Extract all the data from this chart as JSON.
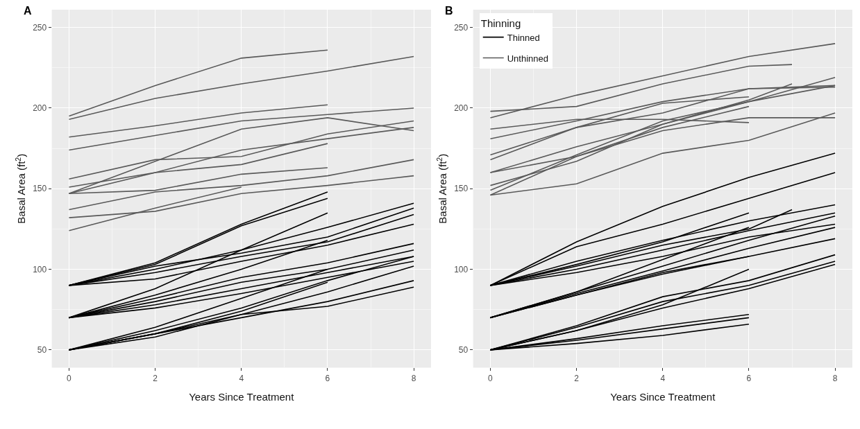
{
  "chart_data": [
    {
      "type": "line",
      "title": "A",
      "xlabel": "Years Since Treatment",
      "ylabel": "Basal Area (ft$^{2}$)",
      "xlim": [
        -0.4,
        8.4
      ],
      "xticks": [
        0,
        2,
        4,
        6,
        8
      ],
      "ylim": [
        39,
        261
      ],
      "yticks": [
        50,
        100,
        150,
        200,
        250
      ],
      "grid": true,
      "legend": false,
      "marker": "none",
      "line_style": "solid",
      "series": [
        {
          "color": "#595959",
          "x": [
            0,
            2,
            4,
            6
          ],
          "values": [
            195,
            214,
            231,
            236
          ]
        },
        {
          "color": "#595959",
          "x": [
            0,
            2,
            4,
            6,
            8
          ],
          "values": [
            193,
            206,
            215,
            223,
            232
          ]
        },
        {
          "color": "#595959",
          "x": [
            0,
            2,
            4,
            6
          ],
          "values": [
            182,
            189,
            197,
            202
          ]
        },
        {
          "color": "#595959",
          "x": [
            0,
            2,
            4,
            6,
            8
          ],
          "values": [
            174,
            183,
            192,
            196,
            200
          ]
        },
        {
          "color": "#595959",
          "x": [
            0,
            2,
            4,
            6,
            8
          ],
          "values": [
            147,
            167,
            187,
            194,
            186
          ]
        },
        {
          "color": "#595959",
          "x": [
            0,
            2,
            4,
            6,
            8
          ],
          "values": [
            156,
            168,
            170,
            184,
            192
          ]
        },
        {
          "color": "#595959",
          "x": [
            0,
            2,
            4,
            6,
            8
          ],
          "values": [
            151,
            160,
            174,
            181,
            188
          ]
        },
        {
          "color": "#595959",
          "x": [
            0,
            2,
            4,
            6
          ],
          "values": [
            147,
            160,
            165,
            178
          ]
        },
        {
          "color": "#595959",
          "x": [
            0,
            2,
            4,
            6
          ],
          "values": [
            147,
            149,
            159,
            163
          ]
        },
        {
          "color": "#595959",
          "x": [
            0,
            2,
            4,
            6,
            8
          ],
          "values": [
            137,
            148,
            152,
            158,
            168
          ]
        },
        {
          "color": "#595959",
          "x": [
            0,
            2,
            4,
            6,
            8
          ],
          "values": [
            132,
            136,
            147,
            152,
            158
          ]
        },
        {
          "color": "#595959",
          "x": [
            0,
            2,
            4
          ],
          "values": [
            124,
            138,
            151
          ]
        },
        {
          "color": "#000000",
          "x": [
            0,
            2,
            4,
            6
          ],
          "values": [
            90,
            104,
            128,
            148
          ]
        },
        {
          "color": "#000000",
          "x": [
            0,
            2,
            4,
            6
          ],
          "values": [
            90,
            103,
            127,
            144
          ]
        },
        {
          "color": "#000000",
          "x": [
            0,
            2,
            4,
            6,
            8
          ],
          "values": [
            90,
            100,
            112,
            126,
            141
          ]
        },
        {
          "color": "#000000",
          "x": [
            0,
            2,
            4,
            6,
            8
          ],
          "values": [
            90,
            102,
            110,
            120,
            138
          ]
        },
        {
          "color": "#000000",
          "x": [
            0,
            2,
            4,
            6,
            8
          ],
          "values": [
            90,
            98,
            108,
            117,
            134
          ]
        },
        {
          "color": "#000000",
          "x": [
            0,
            2,
            4,
            6,
            8
          ],
          "values": [
            90,
            94,
            105,
            115,
            128
          ]
        },
        {
          "color": "#000000",
          "x": [
            0,
            2,
            4,
            6
          ],
          "values": [
            70,
            88,
            112,
            135
          ]
        },
        {
          "color": "#000000",
          "x": [
            0,
            2,
            4,
            6,
            8
          ],
          "values": [
            70,
            82,
            95,
            104,
            116
          ]
        },
        {
          "color": "#000000",
          "x": [
            0,
            2,
            4,
            6,
            8
          ],
          "values": [
            70,
            80,
            92,
            100,
            112
          ]
        },
        {
          "color": "#000000",
          "x": [
            0,
            2,
            4,
            6,
            8
          ],
          "values": [
            70,
            78,
            88,
            98,
            108
          ]
        },
        {
          "color": "#000000",
          "x": [
            0,
            2,
            4,
            6,
            8
          ],
          "values": [
            70,
            76,
            85,
            95,
            105
          ]
        },
        {
          "color": "#000000",
          "x": [
            0,
            2,
            4,
            6
          ],
          "values": [
            70,
            84,
            100,
            118
          ]
        },
        {
          "color": "#000000",
          "x": [
            0,
            2,
            4,
            6,
            8
          ],
          "values": [
            50,
            62,
            76,
            93,
            108
          ]
        },
        {
          "color": "#000000",
          "x": [
            0,
            2,
            4,
            6,
            8
          ],
          "values": [
            50,
            60,
            72,
            86,
            102
          ]
        },
        {
          "color": "#000000",
          "x": [
            0,
            2,
            4,
            6,
            8
          ],
          "values": [
            50,
            60,
            70,
            80,
            93
          ]
        },
        {
          "color": "#000000",
          "x": [
            0,
            2,
            4,
            6,
            8
          ],
          "values": [
            50,
            58,
            72,
            77,
            89
          ]
        },
        {
          "color": "#000000",
          "x": [
            0,
            2,
            4,
            6
          ],
          "values": [
            50,
            64,
            82,
            100
          ]
        },
        {
          "color": "#000000",
          "x": [
            0,
            2,
            4,
            6
          ],
          "values": [
            50,
            60,
            74,
            92
          ]
        }
      ]
    },
    {
      "type": "line",
      "title": "B",
      "xlabel": "Years Since Treatment",
      "ylabel": "Basal Area (ft$^{2}$)",
      "legend_title": "Thinning",
      "xlim": [
        -0.4,
        8.4
      ],
      "xticks": [
        0,
        2,
        4,
        6,
        8
      ],
      "ylim": [
        39,
        261
      ],
      "yticks": [
        50,
        100,
        150,
        200,
        250
      ],
      "grid": true,
      "legend": "top left",
      "marker": "none",
      "line_style": "solid",
      "series": [
        {
          "name": "Thinned",
          "color": "#000000",
          "x": [
            0,
            2,
            4,
            6,
            8
          ],
          "values": [
            90,
            117,
            139,
            157,
            172
          ]
        },
        {
          "name": "Unthinned",
          "color": "#595959",
          "x": [
            0,
            2,
            4,
            6,
            8
          ],
          "values": [
            194,
            208,
            220,
            232,
            240
          ]
        },
        {
          "color": "#595959",
          "x": [
            0,
            2,
            4,
            6,
            7
          ],
          "values": [
            198,
            201,
            215,
            226,
            227
          ]
        },
        {
          "color": "#595959",
          "x": [
            0,
            2,
            4,
            6
          ],
          "values": [
            187,
            193,
            193,
            191
          ]
        },
        {
          "color": "#595959",
          "x": [
            0,
            2,
            4,
            6,
            8
          ],
          "values": [
            181,
            192,
            204,
            212,
            214
          ]
        },
        {
          "color": "#595959",
          "x": [
            0,
            2,
            4,
            6
          ],
          "values": [
            171,
            188,
            203,
            207
          ]
        },
        {
          "color": "#595959",
          "x": [
            0,
            2,
            4,
            6,
            8
          ],
          "values": [
            168,
            188,
            197,
            212,
            213
          ]
        },
        {
          "color": "#595959",
          "x": [
            0,
            2,
            4,
            6,
            8
          ],
          "values": [
            160,
            176,
            190,
            204,
            219
          ]
        },
        {
          "color": "#595959",
          "x": [
            0,
            2,
            4,
            6
          ],
          "values": [
            160,
            170,
            188,
            201
          ]
        },
        {
          "color": "#595959",
          "x": [
            0,
            2,
            4,
            6,
            7
          ],
          "values": [
            152,
            167,
            190,
            205,
            215
          ]
        },
        {
          "color": "#595959",
          "x": [
            0,
            2,
            4,
            6,
            8
          ],
          "values": [
            149,
            171,
            192,
            204,
            214
          ]
        },
        {
          "color": "#595959",
          "x": [
            0,
            2,
            4,
            6,
            8
          ],
          "values": [
            146,
            153,
            172,
            180,
            197
          ]
        },
        {
          "color": "#595959",
          "x": [
            0,
            2,
            4,
            6,
            8
          ],
          "values": [
            146,
            170,
            186,
            194,
            194
          ]
        },
        {
          "color": "#000000",
          "x": [
            0,
            2,
            4,
            6,
            8
          ],
          "values": [
            90,
            114,
            128,
            144,
            160
          ]
        },
        {
          "color": "#000000",
          "x": [
            0,
            2,
            4,
            6,
            8
          ],
          "values": [
            90,
            105,
            118,
            130,
            140
          ]
        },
        {
          "color": "#000000",
          "x": [
            0,
            2,
            4,
            6,
            7
          ],
          "values": [
            90,
            102,
            115,
            125,
            137
          ]
        },
        {
          "color": "#000000",
          "x": [
            0,
            2,
            4,
            6,
            8
          ],
          "values": [
            90,
            100,
            112,
            124,
            135
          ]
        },
        {
          "color": "#000000",
          "x": [
            0,
            2,
            4,
            6,
            8
          ],
          "values": [
            90,
            98,
            108,
            120,
            128
          ]
        },
        {
          "color": "#000000",
          "x": [
            0,
            2,
            4,
            6
          ],
          "values": [
            90,
            103,
            117,
            135
          ]
        },
        {
          "color": "#000000",
          "x": [
            0,
            2,
            4,
            6,
            8
          ],
          "values": [
            70,
            86,
            102,
            118,
            133
          ]
        },
        {
          "color": "#000000",
          "x": [
            0,
            2,
            4,
            6,
            8
          ],
          "values": [
            70,
            85,
            99,
            113,
            126
          ]
        },
        {
          "color": "#000000",
          "x": [
            0,
            2,
            4,
            6,
            8
          ],
          "values": [
            70,
            84,
            97,
            108,
            119
          ]
        },
        {
          "color": "#000000",
          "x": [
            0,
            2,
            4,
            6
          ],
          "values": [
            70,
            86,
            106,
            126
          ]
        },
        {
          "color": "#000000",
          "x": [
            0,
            2,
            4,
            6
          ],
          "values": [
            70,
            84,
            98,
            108
          ]
        },
        {
          "color": "#000000",
          "x": [
            0,
            2,
            4,
            6,
            8
          ],
          "values": [
            50,
            65,
            83,
            93,
            109
          ]
        },
        {
          "color": "#000000",
          "x": [
            0,
            2,
            4,
            6,
            8
          ],
          "values": [
            50,
            64,
            80,
            90,
            105
          ]
        },
        {
          "color": "#000000",
          "x": [
            0,
            2,
            4,
            6,
            8
          ],
          "values": [
            50,
            62,
            76,
            88,
            103
          ]
        },
        {
          "color": "#000000",
          "x": [
            0,
            2,
            4,
            6
          ],
          "values": [
            50,
            62,
            78,
            100
          ]
        },
        {
          "color": "#000000",
          "x": [
            0,
            2,
            4,
            6
          ],
          "values": [
            50,
            57,
            65,
            72
          ]
        },
        {
          "color": "#000000",
          "x": [
            0,
            2,
            4,
            6
          ],
          "values": [
            50,
            56,
            63,
            70
          ]
        },
        {
          "color": "#000000",
          "x": [
            0,
            2,
            4,
            6
          ],
          "values": [
            50,
            54,
            59,
            66
          ]
        }
      ]
    }
  ]
}
